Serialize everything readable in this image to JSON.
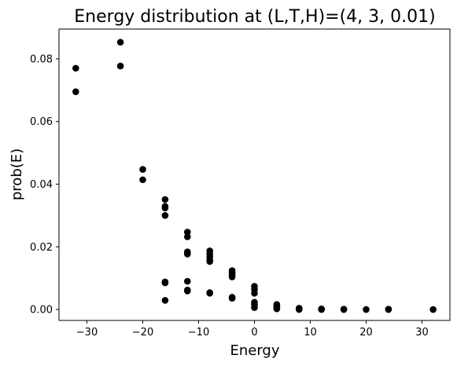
{
  "chart_data": {
    "type": "scatter",
    "title": "Energy distribution at (L,T,H)=(4, 3, 0.01)",
    "xlabel": "Energy",
    "ylabel": "prob(E)",
    "xlim": [
      -35,
      35
    ],
    "ylim": [
      -0.0035,
      0.0895
    ],
    "xticks": [
      -30,
      -20,
      -10,
      0,
      10,
      20,
      30
    ],
    "xtick_labels": [
      "−30",
      "−20",
      "−10",
      "0",
      "10",
      "20",
      "30"
    ],
    "yticks": [
      0.0,
      0.02,
      0.04,
      0.06,
      0.08
    ],
    "ytick_labels": [
      "0.00",
      "0.02",
      "0.04",
      "0.06",
      "0.08"
    ],
    "grid": false,
    "marker_color": "#000000",
    "points": [
      {
        "x": -32,
        "y": 0.077
      },
      {
        "x": -32,
        "y": 0.0695
      },
      {
        "x": -24,
        "y": 0.0853
      },
      {
        "x": -24,
        "y": 0.0777
      },
      {
        "x": -20,
        "y": 0.0447
      },
      {
        "x": -20,
        "y": 0.0414
      },
      {
        "x": -16,
        "y": 0.0351
      },
      {
        "x": -16,
        "y": 0.0329
      },
      {
        "x": -16,
        "y": 0.0324
      },
      {
        "x": -16,
        "y": 0.03
      },
      {
        "x": -16,
        "y": 0.0088
      },
      {
        "x": -16,
        "y": 0.0085
      },
      {
        "x": -16,
        "y": 0.0029
      },
      {
        "x": -12,
        "y": 0.0247
      },
      {
        "x": -12,
        "y": 0.0232
      },
      {
        "x": -12,
        "y": 0.0184
      },
      {
        "x": -12,
        "y": 0.0177
      },
      {
        "x": -12,
        "y": 0.009
      },
      {
        "x": -12,
        "y": 0.0062
      },
      {
        "x": -12,
        "y": 0.0059
      },
      {
        "x": -8,
        "y": 0.0187
      },
      {
        "x": -8,
        "y": 0.0177
      },
      {
        "x": -8,
        "y": 0.0168
      },
      {
        "x": -8,
        "y": 0.0158
      },
      {
        "x": -8,
        "y": 0.0153
      },
      {
        "x": -8,
        "y": 0.0054
      },
      {
        "x": -8,
        "y": 0.0052
      },
      {
        "x": -4,
        "y": 0.0124
      },
      {
        "x": -4,
        "y": 0.0117
      },
      {
        "x": -4,
        "y": 0.011
      },
      {
        "x": -4,
        "y": 0.0104
      },
      {
        "x": -4,
        "y": 0.0039
      },
      {
        "x": -4,
        "y": 0.0036
      },
      {
        "x": 0,
        "y": 0.0074
      },
      {
        "x": 0,
        "y": 0.0064
      },
      {
        "x": 0,
        "y": 0.0052
      },
      {
        "x": 0,
        "y": 0.0023
      },
      {
        "x": 0,
        "y": 0.0016
      },
      {
        "x": 0,
        "y": 0.0006
      },
      {
        "x": 4,
        "y": 0.0016
      },
      {
        "x": 4,
        "y": 0.0011
      },
      {
        "x": 4,
        "y": 0.0005
      },
      {
        "x": 4,
        "y": 0.0002
      },
      {
        "x": 8,
        "y": 0.0004
      },
      {
        "x": 8,
        "y": 0.0002
      },
      {
        "x": 8,
        "y": 0.0001
      },
      {
        "x": 8,
        "y": 0.0
      },
      {
        "x": 12,
        "y": 0.0002
      },
      {
        "x": 12,
        "y": 0.0001
      },
      {
        "x": 12,
        "y": 0.0
      },
      {
        "x": 16,
        "y": 0.0001
      },
      {
        "x": 16,
        "y": 0.0
      },
      {
        "x": 20,
        "y": 0.0
      },
      {
        "x": 24,
        "y": 0.0001
      },
      {
        "x": 24,
        "y": 0.0
      },
      {
        "x": 32,
        "y": 0.0
      }
    ]
  }
}
